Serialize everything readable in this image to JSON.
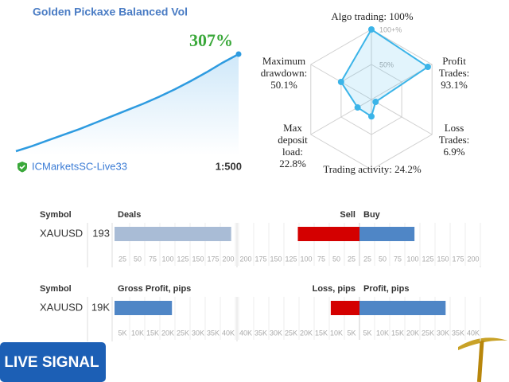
{
  "header": {
    "title": "Golden Pickaxe Balanced Vol",
    "growth": "307%",
    "broker": "ICMarketsSC-Live33",
    "leverage": "1:500"
  },
  "growth_chart": {
    "type": "area",
    "color": "#2e9be0",
    "values": [
      0,
      16,
      34,
      52,
      70,
      90,
      110,
      130,
      150,
      172,
      196,
      222,
      250,
      280,
      307
    ]
  },
  "radar": {
    "type": "radar",
    "color": "#3bb4e8",
    "rlim": [
      0,
      100
    ],
    "rticks": [
      {
        "value": 50,
        "label": "50%"
      },
      {
        "value": 100,
        "label": "100+%"
      }
    ],
    "axes": [
      {
        "lines": [
          "Algo trading: 100%"
        ],
        "value": 100
      },
      {
        "lines": [
          "Profit",
          "Trades:",
          "93.1%"
        ],
        "value": 93.1
      },
      {
        "lines": [
          "Loss",
          "Trades:",
          "6.9%"
        ],
        "value": 6.9
      },
      {
        "lines": [
          "Trading activity: 24.2%"
        ],
        "value": 24.2
      },
      {
        "lines": [
          "Max",
          "deposit",
          "load:",
          "22.8%"
        ],
        "value": 22.8
      },
      {
        "lines": [
          "Maximum",
          "drawdown:",
          "50.1%"
        ],
        "value": 50.1
      }
    ]
  },
  "deals": {
    "headers": {
      "symbol": "Symbol",
      "total": "Deals",
      "left": "Sell",
      "right": "Buy"
    },
    "symbol": "XAUUSD",
    "total": 193,
    "left": 102,
    "right": 91,
    "colors": {
      "total": "#a9bcd6",
      "left": "#d40000",
      "right": "#4f86c6"
    },
    "xlim": [
      0,
      200
    ],
    "xticks": [
      25,
      50,
      75,
      100,
      125,
      150,
      175,
      200
    ]
  },
  "pips": {
    "headers": {
      "symbol": "Symbol",
      "total": "Gross Profit, pips",
      "left": "Loss, pips",
      "right": "Profit, pips"
    },
    "symbol": "XAUUSD",
    "total": 19000,
    "total_label": "19K",
    "left": 9500,
    "right": 28500,
    "colors": {
      "total": "#4f86c6",
      "left": "#d40000",
      "right": "#4f86c6"
    },
    "xlim": [
      0,
      40000
    ],
    "xticks": [
      {
        "value": 5000,
        "label": "5K"
      },
      {
        "value": 10000,
        "label": "10K"
      },
      {
        "value": 15000,
        "label": "15K"
      },
      {
        "value": 20000,
        "label": "20K"
      },
      {
        "value": 25000,
        "label": "25K"
      },
      {
        "value": 30000,
        "label": "30K"
      },
      {
        "value": 35000,
        "label": "35K"
      },
      {
        "value": 40000,
        "label": "40K"
      }
    ]
  },
  "badge": {
    "text": "LIVE SIGNAL"
  }
}
